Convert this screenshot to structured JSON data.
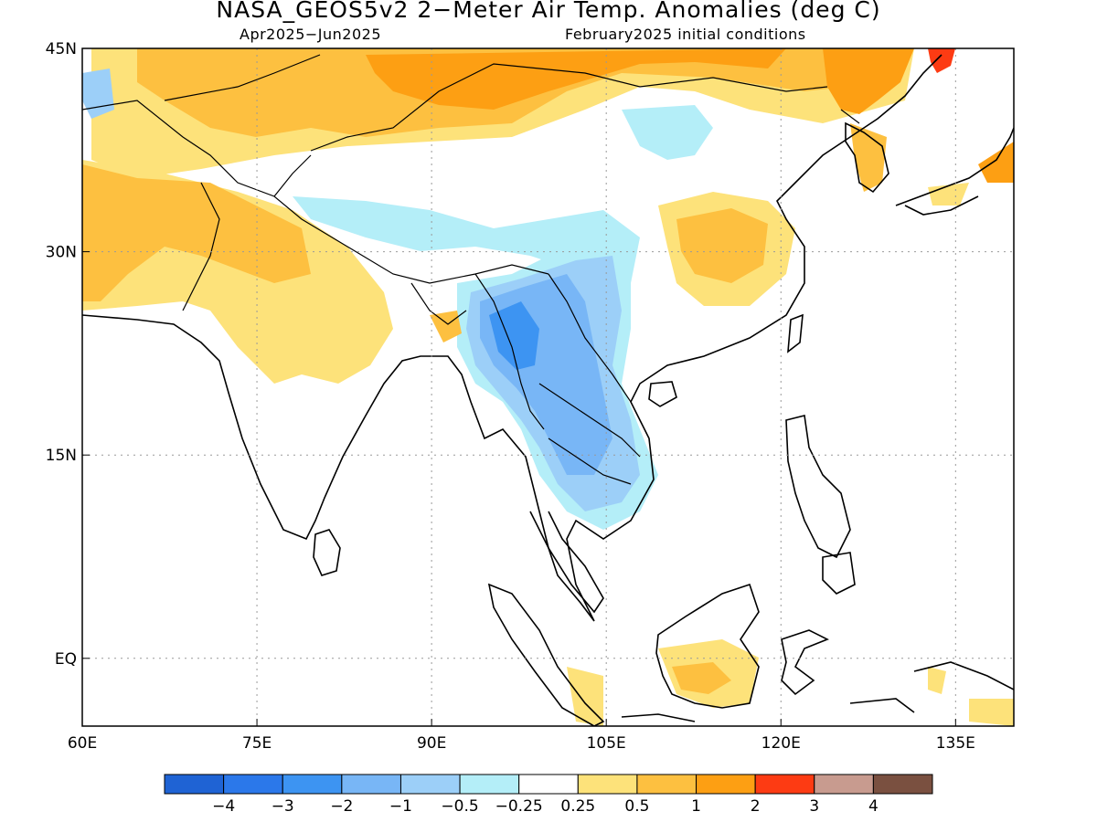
{
  "title": "NASA_GEOS5v2 2−Meter Air Temp. Anomalies (deg C)",
  "subtitle_left": "Apr2025−Jun2025",
  "subtitle_right": "February2025 initial conditions",
  "map": {
    "lon_range": [
      60,
      140
    ],
    "lat_range": [
      -5,
      45
    ],
    "x_ticks": [
      {
        "value": 60,
        "label": "60E"
      },
      {
        "value": 75,
        "label": "75E"
      },
      {
        "value": 90,
        "label": "90E"
      },
      {
        "value": 105,
        "label": "105E"
      },
      {
        "value": 120,
        "label": "120E"
      },
      {
        "value": 135,
        "label": "135E"
      }
    ],
    "y_ticks": [
      {
        "value": 45,
        "label": "45N"
      },
      {
        "value": 30,
        "label": "30N"
      },
      {
        "value": 15,
        "label": "15N"
      },
      {
        "value": 0,
        "label": "EQ"
      }
    ],
    "grid": "dotted"
  },
  "colorbar": {
    "colors": [
      "#1f63d4",
      "#2b78ea",
      "#3d94f2",
      "#78b6f6",
      "#9ccff8",
      "#b4eef8",
      "#ffffff",
      "#fde27a",
      "#fdc040",
      "#fd9f13",
      "#fd3b13",
      "#c89b8f",
      "#7a5040"
    ],
    "labels": [
      "−4",
      "−3",
      "−2",
      "−1",
      "−0.5",
      "−0.25",
      "0.25",
      "0.5",
      "1",
      "2",
      "3",
      "4"
    ]
  },
  "anomaly_regions": [
    {
      "name": "mongolia-warm",
      "level": "0.5",
      "color": "#fde27a"
    },
    {
      "name": "north-china-warm",
      "level": "1",
      "color": "#fdc040"
    },
    {
      "name": "northeast-china-strong",
      "level": "2",
      "color": "#fd9f13"
    },
    {
      "name": "far-northeast-hot",
      "level": "3",
      "color": "#fd3b13"
    },
    {
      "name": "pakistan-iran-warm",
      "level": "1",
      "color": "#fdc040"
    },
    {
      "name": "india-warm",
      "level": "0.5",
      "color": "#fde27a"
    },
    {
      "name": "tibet-cool",
      "level": "-0.25",
      "color": "#b4eef8"
    },
    {
      "name": "myanmar-cool",
      "level": "-1",
      "color": "#78b6f6"
    },
    {
      "name": "myanmar-core-cool",
      "level": "-2",
      "color": "#3d94f2"
    },
    {
      "name": "indochina-cool",
      "level": "-0.5",
      "color": "#9ccff8"
    },
    {
      "name": "south-china-warm",
      "level": "1",
      "color": "#fdc040"
    },
    {
      "name": "borneo-warm",
      "level": "0.5",
      "color": "#fde27a"
    },
    {
      "name": "japan-warm",
      "level": "2",
      "color": "#fd9f13"
    }
  ]
}
